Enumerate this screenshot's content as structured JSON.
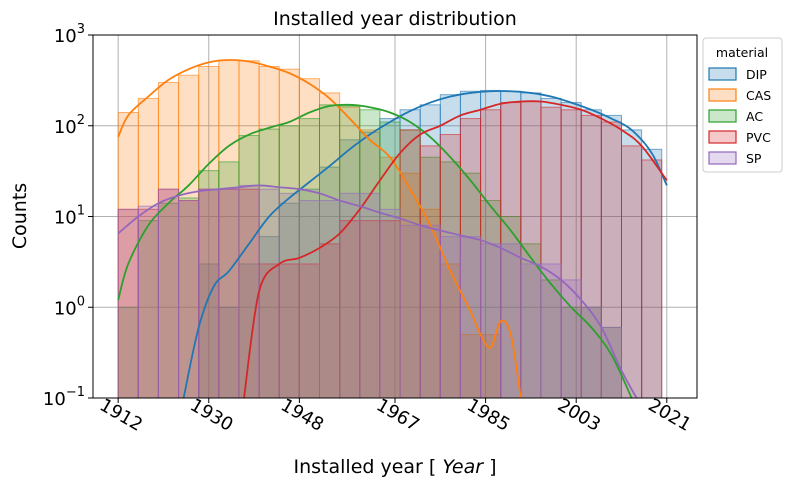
{
  "chart_data": {
    "type": "histogram",
    "title": "Installed year distribution",
    "xlabel_prefix": "Installed year [ ",
    "xlabel_unit": "Year",
    "xlabel_suffix": " ]",
    "ylabel": "Counts",
    "y_scale": "log",
    "ylim": [
      0.1,
      1000
    ],
    "xlim": [
      1907,
      2027
    ],
    "x_ticks": [
      1912,
      1930,
      1948,
      1967,
      1985,
      2003,
      2021
    ],
    "y_ticks": [
      {
        "value": 0.1,
        "base": "10",
        "exp": "−1"
      },
      {
        "value": 1,
        "base": "10",
        "exp": "0"
      },
      {
        "value": 10,
        "base": "10",
        "exp": "1"
      },
      {
        "value": 100,
        "base": "10",
        "exp": "2"
      },
      {
        "value": 1000,
        "base": "10",
        "exp": "3"
      }
    ],
    "grid": true,
    "bin_edges": [
      1912,
      1916,
      1920,
      1924,
      1928,
      1932,
      1936,
      1940,
      1944,
      1948,
      1952,
      1956,
      1960,
      1964,
      1968,
      1972,
      1976,
      1980,
      1984,
      1988,
      1992,
      1996,
      2000,
      2004,
      2008,
      2012,
      2016,
      2020
    ],
    "legend": {
      "title": "material",
      "placement": "outside-top-right"
    },
    "series": [
      {
        "name": "DIP",
        "color": "#1f77b4",
        "counts": [
          0,
          0,
          0,
          0,
          3,
          1,
          3,
          6,
          14,
          20,
          35,
          70,
          85,
          120,
          150,
          170,
          220,
          240,
          245,
          240,
          230,
          200,
          180,
          150,
          130,
          90,
          55
        ],
        "kde_x": [
          1925,
          1928,
          1931,
          1934,
          1938,
          1942,
          1946,
          1950,
          1954,
          1958,
          1962,
          1966,
          1970,
          1974,
          1978,
          1982,
          1986,
          1990,
          1994,
          1998,
          2002,
          2006,
          2010,
          2014,
          2018,
          2021
        ],
        "kde_y": [
          0.1,
          0.6,
          1.7,
          2.5,
          5,
          10,
          16,
          24,
          36,
          55,
          80,
          110,
          145,
          180,
          210,
          230,
          240,
          240,
          230,
          210,
          180,
          150,
          120,
          90,
          50,
          22
        ]
      },
      {
        "name": "CAS",
        "color": "#ff7f0e",
        "counts": [
          140,
          200,
          300,
          360,
          450,
          530,
          520,
          450,
          420,
          330,
          230,
          160,
          90,
          45,
          30,
          12,
          3,
          0.5,
          0.5,
          0,
          0,
          0,
          0,
          0,
          0,
          0,
          0
        ],
        "kde_x": [
          1912,
          1914,
          1918,
          1922,
          1926,
          1930,
          1934,
          1938,
          1942,
          1946,
          1950,
          1954,
          1958,
          1962,
          1966,
          1970,
          1974,
          1978,
          1982,
          1984,
          1986,
          1988,
          1990,
          1992,
          1994
        ],
        "kde_y": [
          75,
          130,
          210,
          320,
          420,
          500,
          530,
          510,
          450,
          380,
          290,
          200,
          120,
          70,
          45,
          20,
          8,
          2.5,
          0.9,
          0.5,
          0.36,
          0.7,
          0.5,
          0.1,
          0.02
        ]
      },
      {
        "name": "AC",
        "color": "#2ca02c",
        "counts": [
          1,
          9,
          14,
          16,
          32,
          40,
          78,
          92,
          100,
          120,
          170,
          165,
          150,
          110,
          90,
          45,
          40,
          30,
          15,
          10,
          5,
          2,
          1,
          1,
          0.6,
          0,
          0
        ],
        "kde_x": [
          1912,
          1914,
          1918,
          1922,
          1926,
          1930,
          1934,
          1938,
          1942,
          1946,
          1950,
          1954,
          1958,
          1962,
          1966,
          1970,
          1974,
          1978,
          1982,
          1986,
          1990,
          1994,
          1998,
          2002,
          2006,
          2010,
          2014,
          2018
        ],
        "kde_y": [
          1.2,
          3,
          8,
          14,
          22,
          38,
          60,
          80,
          95,
          110,
          140,
          165,
          170,
          160,
          140,
          110,
          75,
          45,
          25,
          13,
          7,
          3.5,
          1.8,
          1,
          0.6,
          0.3,
          0.1,
          0.03
        ]
      },
      {
        "name": "PVC",
        "color": "#d62728",
        "counts": [
          12,
          12,
          20,
          15,
          20,
          20,
          20,
          3,
          3,
          3,
          5,
          9,
          9,
          9,
          90,
          60,
          80,
          120,
          150,
          180,
          185,
          160,
          150,
          130,
          110,
          60,
          42
        ],
        "kde_x": [
          1937,
          1940,
          1944,
          1948,
          1952,
          1956,
          1960,
          1964,
          1968,
          1972,
          1976,
          1980,
          1984,
          1988,
          1992,
          1996,
          2000,
          2004,
          2008,
          2012,
          2016,
          2021
        ],
        "kde_y": [
          0.1,
          1.5,
          3,
          3.5,
          4.5,
          6.5,
          12,
          25,
          50,
          80,
          100,
          130,
          150,
          175,
          185,
          185,
          170,
          150,
          120,
          90,
          60,
          25
        ]
      },
      {
        "name": "SP",
        "color": "#9467bd",
        "counts": [
          12,
          13,
          20,
          15,
          20,
          20,
          22,
          20,
          18,
          15,
          15,
          18,
          18,
          12,
          8,
          8,
          6,
          6,
          5,
          5,
          3,
          3,
          2,
          1,
          0.6,
          0.1,
          0.1
        ],
        "kde_x": [
          1912,
          1916,
          1920,
          1924,
          1928,
          1932,
          1936,
          1940,
          1944,
          1948,
          1952,
          1956,
          1960,
          1964,
          1968,
          1972,
          1976,
          1980,
          1984,
          1988,
          1992,
          1996,
          2000,
          2004,
          2008,
          2012,
          2016
        ],
        "kde_y": [
          6.5,
          10,
          14,
          17,
          19,
          20,
          21,
          22,
          21,
          20,
          18,
          15,
          13,
          11,
          9.5,
          8,
          7,
          6.2,
          5.5,
          4.5,
          3.5,
          2.8,
          2,
          1.2,
          0.6,
          0.2,
          0.08
        ]
      }
    ]
  }
}
